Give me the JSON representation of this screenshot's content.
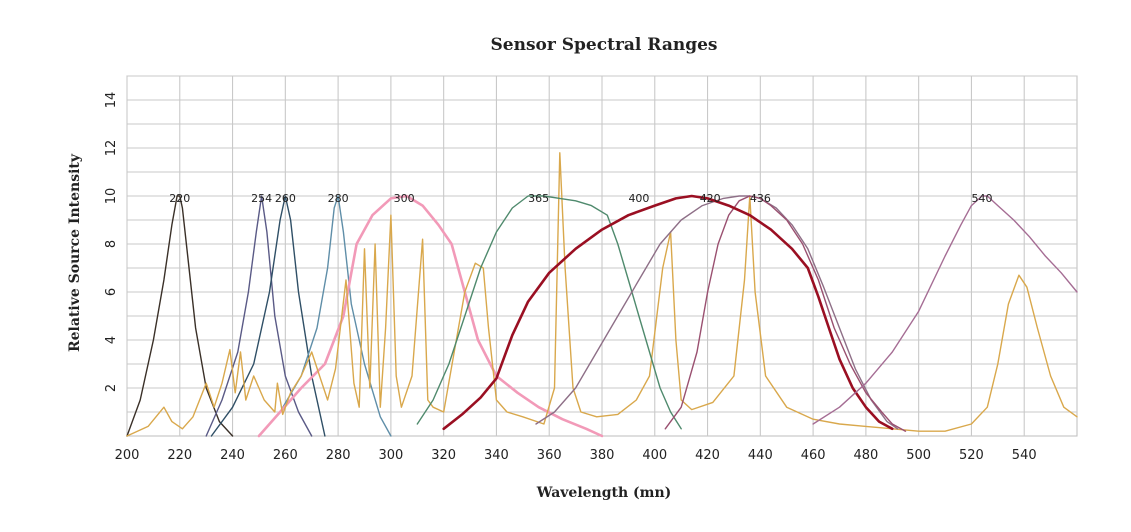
{
  "chart_data": {
    "type": "line",
    "title": "Sensor Spectral Ranges",
    "xlabel": "Wavelength (mn)",
    "ylabel": "Relative Source Intensity",
    "xlim": [
      200,
      560
    ],
    "ylim": [
      0,
      15
    ],
    "x_ticks": [
      200,
      220,
      240,
      260,
      280,
      300,
      320,
      340,
      360,
      380,
      400,
      420,
      440,
      460,
      480,
      500,
      520,
      540
    ],
    "y_ticks": [
      2,
      4,
      6,
      8,
      10,
      12,
      14
    ],
    "grid": true,
    "peak_labels": [
      {
        "text": "220",
        "x": 220
      },
      {
        "text": "254",
        "x": 251
      },
      {
        "text": "260",
        "x": 260
      },
      {
        "text": "280",
        "x": 280
      },
      {
        "text": "300",
        "x": 305
      },
      {
        "text": "365",
        "x": 356
      },
      {
        "text": "400",
        "x": 394
      },
      {
        "text": "420",
        "x": 421
      },
      {
        "text": "436",
        "x": 440
      },
      {
        "text": "540",
        "x": 524
      }
    ],
    "series": [
      {
        "color": "#3a3028",
        "width": 1.4,
        "x": [
          200,
          205,
          210,
          214,
          217,
          219,
          220,
          221,
          223,
          226,
          230,
          235,
          240
        ],
        "y": [
          0,
          1.5,
          4,
          6.5,
          8.8,
          10,
          10,
          9.5,
          7.5,
          4.5,
          2,
          0.6,
          0
        ]
      },
      {
        "color": "#5a5a86",
        "width": 1.4,
        "x": [
          230,
          236,
          242,
          246,
          249,
          251,
          253,
          256,
          260,
          265,
          270
        ],
        "y": [
          0,
          1.5,
          3.5,
          6,
          8.5,
          10,
          8.5,
          5,
          2.5,
          1,
          0
        ]
      },
      {
        "color": "#2f4f66",
        "width": 1.4,
        "x": [
          232,
          240,
          248,
          254,
          258,
          260,
          262,
          265,
          270,
          275
        ],
        "y": [
          0,
          1.2,
          3,
          6,
          9,
          10,
          9,
          6,
          2.5,
          0
        ]
      },
      {
        "color": "#5f8ea8",
        "width": 1.4,
        "x": [
          250,
          258,
          266,
          272,
          276,
          278.5,
          280,
          282,
          285,
          290,
          296,
          300
        ],
        "y": [
          0,
          1,
          2.5,
          4.5,
          7,
          9.5,
          10,
          8.5,
          5.5,
          3,
          0.8,
          0
        ]
      },
      {
        "color": "#f29ab8",
        "width": 2.6,
        "x": [
          250,
          258,
          266,
          275,
          282,
          287,
          293,
          300,
          306,
          312,
          318,
          323,
          328,
          333,
          340,
          348,
          356,
          365,
          374,
          380
        ],
        "y": [
          0,
          1,
          2,
          3,
          5,
          8,
          9.2,
          9.9,
          10,
          9.6,
          8.8,
          8,
          6,
          4,
          2.5,
          1.8,
          1.2,
          0.7,
          0.3,
          0
        ]
      },
      {
        "color": "#d9a84c",
        "width": 1.4,
        "x": [
          200,
          208,
          214,
          217,
          221,
          225,
          230,
          233,
          236,
          239,
          241,
          243,
          245,
          248,
          252,
          256,
          257,
          259,
          262,
          266,
          270,
          273,
          276,
          279,
          283,
          286,
          288,
          290,
          292,
          294,
          296,
          298,
          300,
          302,
          304,
          308,
          312,
          314,
          316,
          320,
          324,
          328,
          332,
          335,
          337,
          340,
          344,
          350,
          358,
          362,
          364,
          366,
          369,
          372,
          378,
          386,
          393,
          398,
          403,
          406,
          408,
          410,
          414,
          422,
          430,
          434,
          436,
          438,
          442,
          450,
          460,
          470,
          480,
          490,
          500,
          510,
          520,
          526,
          530,
          534,
          538,
          541,
          545,
          550,
          555,
          560
        ],
        "y": [
          0,
          0.4,
          1.2,
          0.6,
          0.3,
          0.8,
          2.2,
          1.2,
          2.2,
          3.6,
          1.8,
          3.5,
          1.5,
          2.5,
          1.5,
          1.0,
          2.2,
          0.9,
          1.8,
          2.5,
          3.5,
          2.5,
          1.5,
          2.8,
          6.5,
          2.2,
          1.2,
          7.8,
          2.0,
          8.0,
          1.2,
          4.5,
          9.2,
          2.5,
          1.2,
          2.5,
          8.2,
          1.5,
          1.2,
          1.0,
          3.5,
          6.0,
          7.2,
          7.0,
          4.5,
          1.5,
          1.0,
          0.8,
          0.5,
          2.0,
          11.8,
          7.0,
          2.0,
          1.0,
          0.8,
          0.9,
          1.5,
          2.5,
          7.0,
          8.5,
          4.0,
          1.5,
          1.1,
          1.4,
          2.5,
          6.5,
          10.0,
          6.0,
          2.5,
          1.2,
          0.7,
          0.5,
          0.4,
          0.3,
          0.2,
          0.2,
          0.5,
          1.2,
          3.0,
          5.5,
          6.7,
          6.2,
          4.5,
          2.5,
          1.2,
          0.8
        ]
      },
      {
        "color": "#4f8a6d",
        "width": 1.4,
        "x": [
          310,
          316,
          322,
          328,
          334,
          340,
          346,
          352,
          358,
          364,
          370,
          376,
          382,
          386,
          390,
          394,
          398,
          402,
          406,
          410
        ],
        "y": [
          0.5,
          1.5,
          3,
          5,
          7,
          8.5,
          9.5,
          10,
          10,
          9.9,
          9.8,
          9.6,
          9.2,
          8,
          6.5,
          5,
          3.5,
          2,
          1,
          0.3
        ]
      },
      {
        "color": "#8e6f87",
        "width": 1.4,
        "x": [
          355,
          362,
          370,
          378,
          386,
          394,
          402,
          410,
          418,
          426,
          432,
          436,
          440,
          446,
          452,
          458,
          464,
          470,
          476,
          482,
          488,
          492
        ],
        "y": [
          0.5,
          1,
          2,
          3.5,
          5,
          6.5,
          8,
          9,
          9.6,
          9.9,
          10,
          10,
          9.9,
          9.5,
          8.8,
          7.8,
          6.2,
          4.5,
          2.8,
          1.5,
          0.6,
          0.3
        ]
      },
      {
        "color": "#9a5070",
        "width": 1.4,
        "x": [
          404,
          410,
          416,
          420,
          424,
          428,
          432,
          436,
          440,
          444,
          450,
          456,
          462,
          468,
          474,
          480,
          486,
          490,
          495
        ],
        "y": [
          0.3,
          1.2,
          3.5,
          6,
          8,
          9.2,
          9.8,
          10,
          9.9,
          9.6,
          9,
          8,
          6.5,
          4.5,
          3,
          1.8,
          1,
          0.5,
          0.2
        ]
      },
      {
        "color": "#9a0f22",
        "width": 2.6,
        "x": [
          320,
          327,
          334,
          340,
          346,
          352,
          360,
          370,
          380,
          390,
          400,
          408,
          414,
          420,
          428,
          436,
          444,
          452,
          458,
          462,
          466,
          470,
          475,
          480,
          485,
          490
        ],
        "y": [
          0.3,
          0.9,
          1.6,
          2.4,
          4.2,
          5.6,
          6.8,
          7.8,
          8.6,
          9.2,
          9.6,
          9.9,
          10,
          9.9,
          9.6,
          9.2,
          8.6,
          7.8,
          7.0,
          5.8,
          4.5,
          3.2,
          2.0,
          1.2,
          0.6,
          0.3
        ]
      },
      {
        "color": "#a56d94",
        "width": 1.4,
        "x": [
          460,
          470,
          480,
          490,
          500,
          510,
          516,
          520,
          524,
          526,
          530,
          536,
          542,
          548,
          554,
          560
        ],
        "y": [
          0.5,
          1.2,
          2.2,
          3.5,
          5.2,
          7.5,
          8.8,
          9.6,
          10,
          10,
          9.6,
          9,
          8.3,
          7.5,
          6.8,
          6
        ]
      }
    ]
  }
}
